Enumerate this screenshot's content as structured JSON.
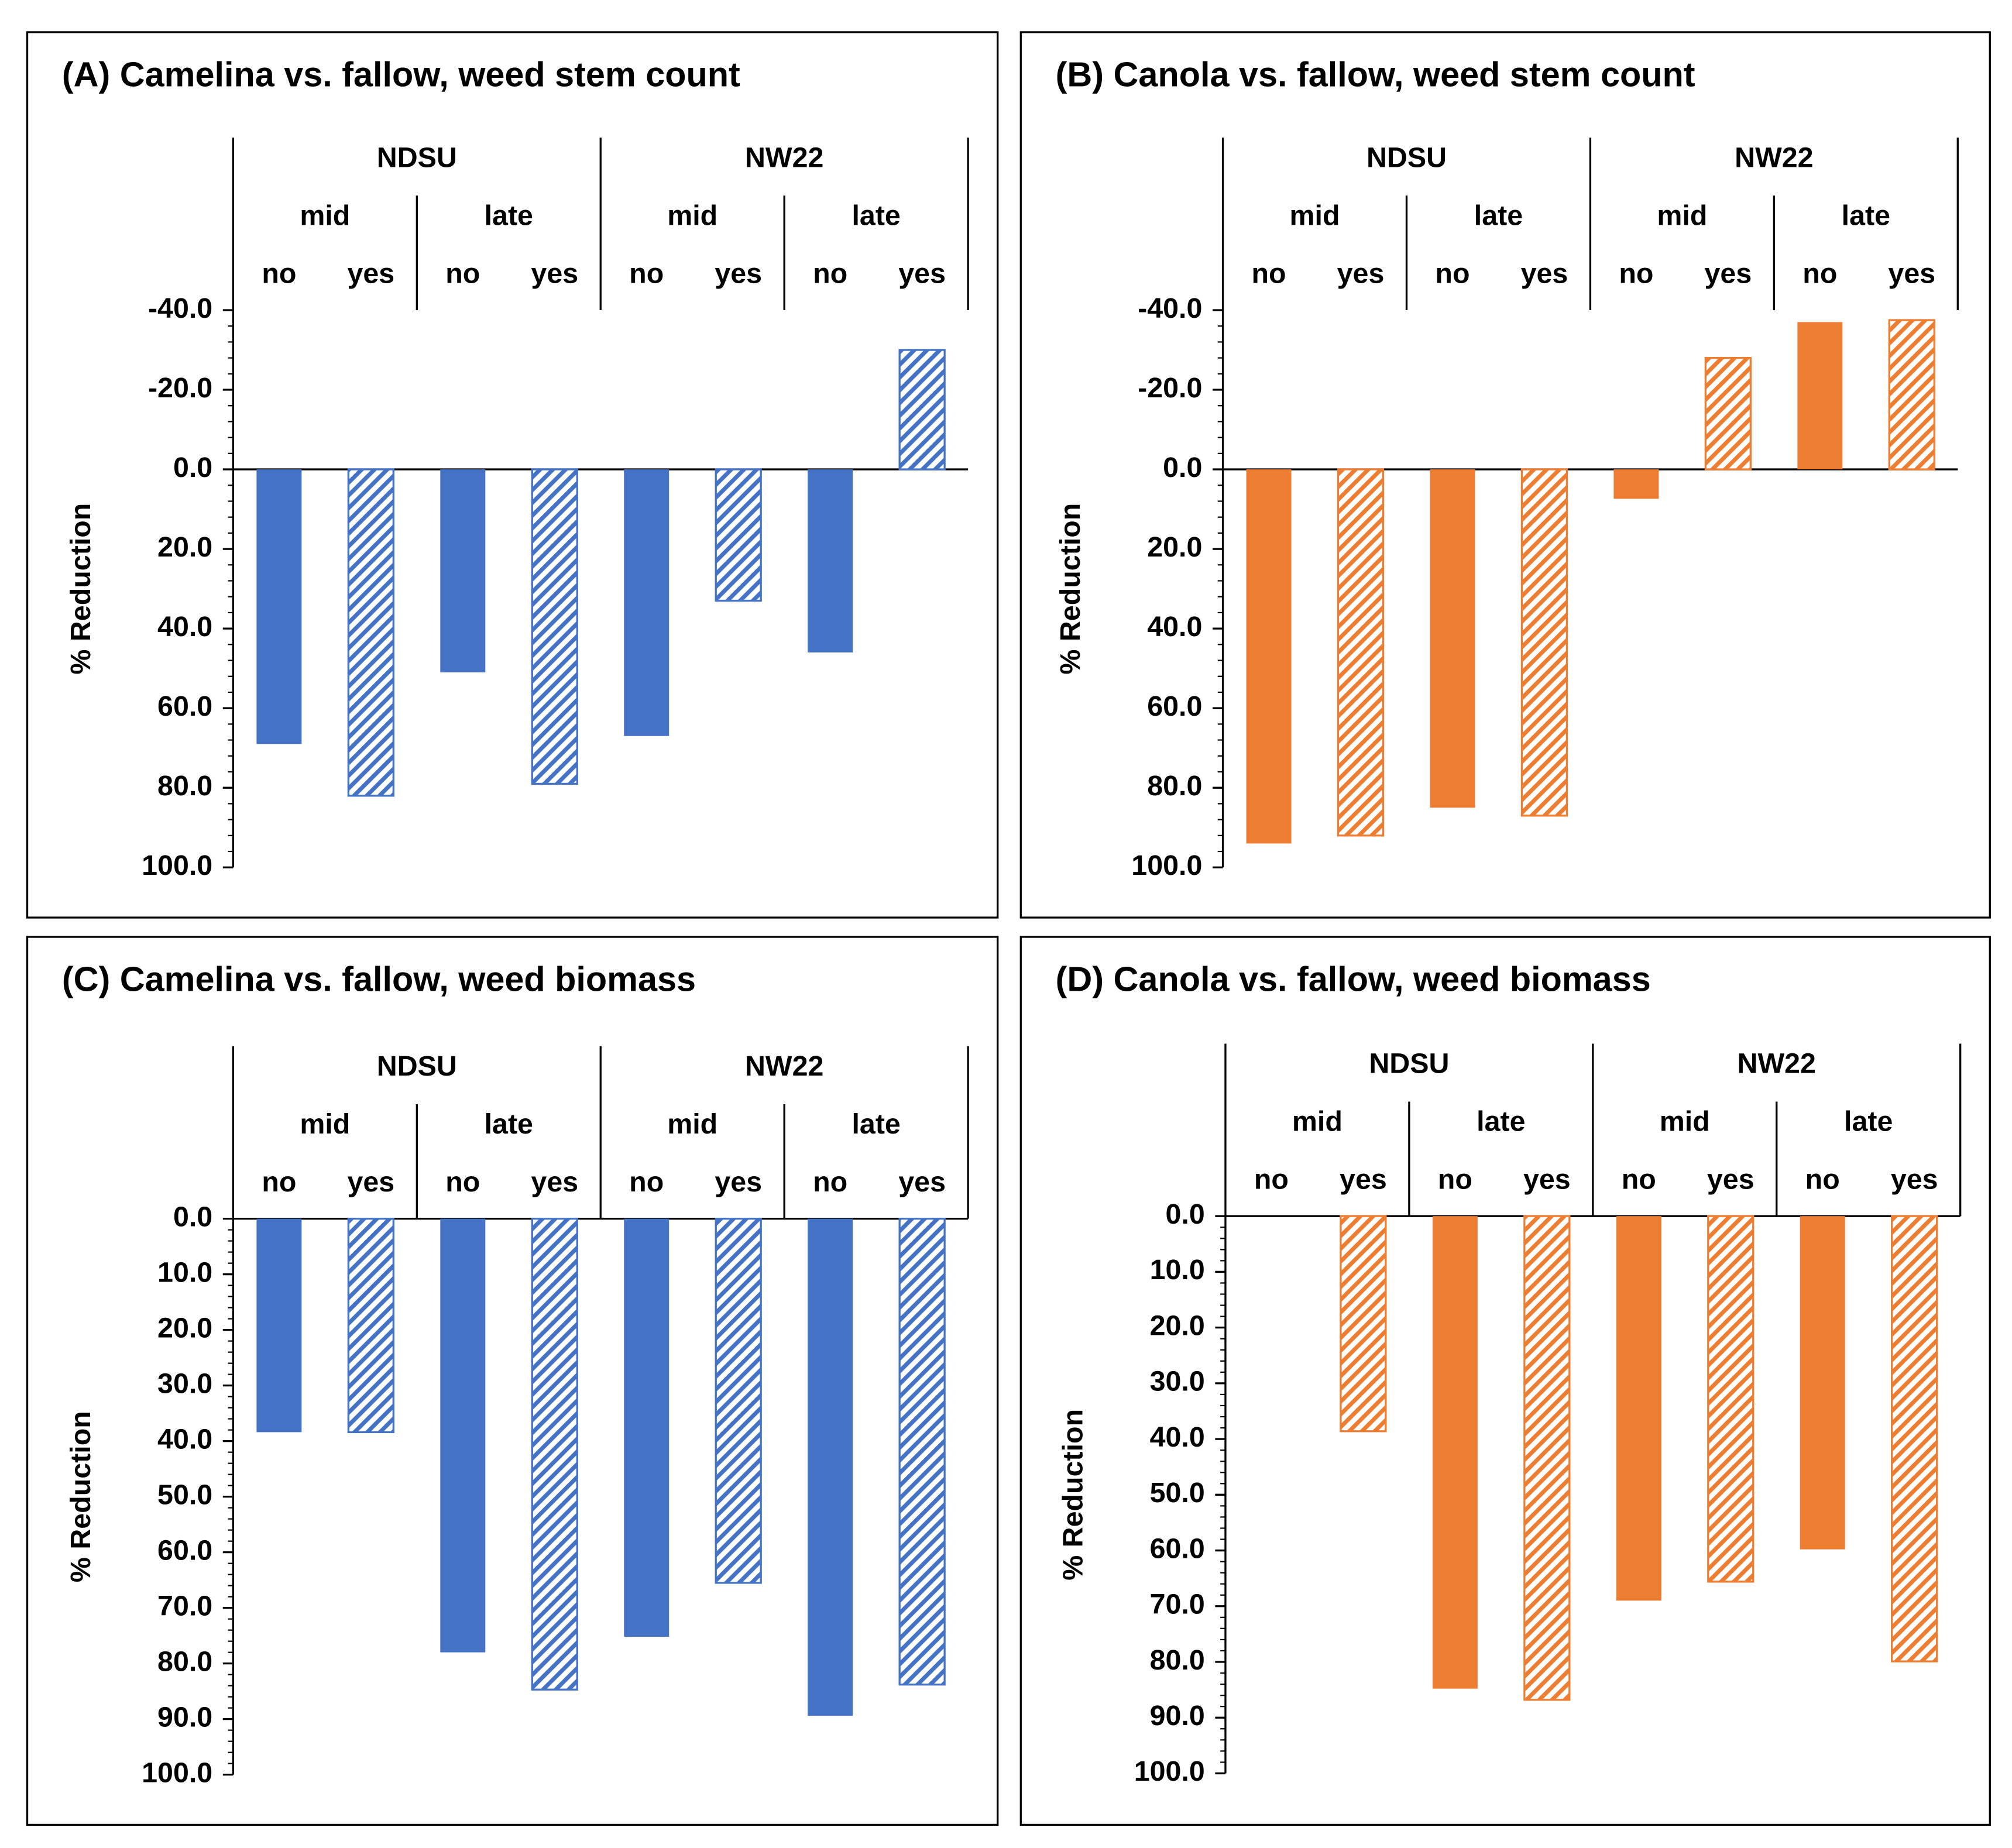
{
  "chart_data": [
    {
      "type": "bar",
      "title": "(A) Camelina vs. fallow, weed stem count",
      "y_label": "% Reduction",
      "sites": [
        "NDSU",
        "NW22"
      ],
      "timings": [
        "mid",
        "late",
        "mid",
        "late"
      ],
      "categories": [
        "no",
        "yes",
        "no",
        "yes",
        "no",
        "yes",
        "no",
        "yes"
      ],
      "values": [
        69,
        82,
        51,
        79,
        67,
        33,
        46,
        -30
      ],
      "hatched": [
        false,
        true,
        false,
        true,
        false,
        true,
        false,
        true
      ],
      "color": "#4472c4",
      "y_reversed": true,
      "ylim": [
        -40,
        100
      ],
      "yticks": [
        {
          "value": -40,
          "label": "-40.0"
        },
        {
          "value": -20,
          "label": "-20.0"
        },
        {
          "value": 0,
          "label": "0.0"
        },
        {
          "value": 20,
          "label": "20.0"
        },
        {
          "value": 40,
          "label": "40.0"
        },
        {
          "value": 60,
          "label": "60.0"
        },
        {
          "value": 80,
          "label": "80.0"
        },
        {
          "value": 100,
          "label": "100.0"
        }
      ]
    },
    {
      "type": "bar",
      "title": "(B) Canola vs. fallow, weed stem count",
      "y_label": "% Reduction",
      "sites": [
        "NDSU",
        "NW22"
      ],
      "timings": [
        "mid",
        "late",
        "mid",
        "late"
      ],
      "categories": [
        "no",
        "yes",
        "no",
        "yes",
        "no",
        "yes",
        "no",
        "yes"
      ],
      "values": [
        94,
        92,
        85,
        87,
        7.4,
        -28,
        -37,
        -37.5
      ],
      "hatched": [
        false,
        true,
        false,
        true,
        false,
        true,
        false,
        true
      ],
      "color": "#ed7d31",
      "y_reversed": true,
      "ylim": [
        -40,
        100
      ],
      "yticks": [
        {
          "value": -40,
          "label": "-40.0"
        },
        {
          "value": -20,
          "label": "-20.0"
        },
        {
          "value": 0,
          "label": "0.0"
        },
        {
          "value": 20,
          "label": "20.0"
        },
        {
          "value": 40,
          "label": "40.0"
        },
        {
          "value": 60,
          "label": "60.0"
        },
        {
          "value": 80,
          "label": "80.0"
        },
        {
          "value": 100,
          "label": "100.0"
        }
      ]
    },
    {
      "type": "bar",
      "title": "(C) Camelina vs. fallow, weed biomass",
      "y_label": "% Reduction",
      "sites": [
        "NDSU",
        "NW22"
      ],
      "timings": [
        "mid",
        "late",
        "mid",
        "late"
      ],
      "categories": [
        "no",
        "yes",
        "no",
        "yes",
        "no",
        "yes",
        "no",
        "yes"
      ],
      "values": [
        38.4,
        38.4,
        78,
        84.7,
        75.2,
        65.5,
        89.4,
        83.8
      ],
      "hatched": [
        false,
        true,
        false,
        true,
        false,
        true,
        false,
        true
      ],
      "color": "#4472c4",
      "y_reversed": true,
      "ylim": [
        0,
        100
      ],
      "yticks": [
        {
          "value": 0,
          "label": "0.0"
        },
        {
          "value": 10,
          "label": "10.0"
        },
        {
          "value": 20,
          "label": "20.0"
        },
        {
          "value": 30,
          "label": "30.0"
        },
        {
          "value": 40,
          "label": "40.0"
        },
        {
          "value": 50,
          "label": "50.0"
        },
        {
          "value": 60,
          "label": "60.0"
        },
        {
          "value": 70,
          "label": "70.0"
        },
        {
          "value": 80,
          "label": "80.0"
        },
        {
          "value": 90,
          "label": "90.0"
        },
        {
          "value": 100,
          "label": "100.0"
        }
      ]
    },
    {
      "type": "bar",
      "title": "(D) Canola vs. fallow, weed biomass",
      "y_label": "% Reduction",
      "sites": [
        "NDSU",
        "NW22"
      ],
      "timings": [
        "mid",
        "late",
        "mid",
        "late"
      ],
      "categories": [
        "no",
        "yes",
        "no",
        "yes",
        "no",
        "yes",
        "no",
        "yes"
      ],
      "values": [
        null,
        38.6,
        84.8,
        86.8,
        69,
        65.6,
        59.8,
        79.9
      ],
      "hatched": [
        false,
        true,
        false,
        true,
        false,
        true,
        false,
        true
      ],
      "color": "#ed7d31",
      "y_reversed": true,
      "ylim": [
        0,
        100
      ],
      "yticks": [
        {
          "value": 0,
          "label": "0.0"
        },
        {
          "value": 10,
          "label": "10.0"
        },
        {
          "value": 20,
          "label": "20.0"
        },
        {
          "value": 30,
          "label": "30.0"
        },
        {
          "value": 40,
          "label": "40.0"
        },
        {
          "value": 50,
          "label": "50.0"
        },
        {
          "value": 60,
          "label": "60.0"
        },
        {
          "value": 70,
          "label": "70.0"
        },
        {
          "value": 80,
          "label": "80.0"
        },
        {
          "value": 90,
          "label": "90.0"
        },
        {
          "value": 100,
          "label": "100.0"
        }
      ]
    }
  ]
}
